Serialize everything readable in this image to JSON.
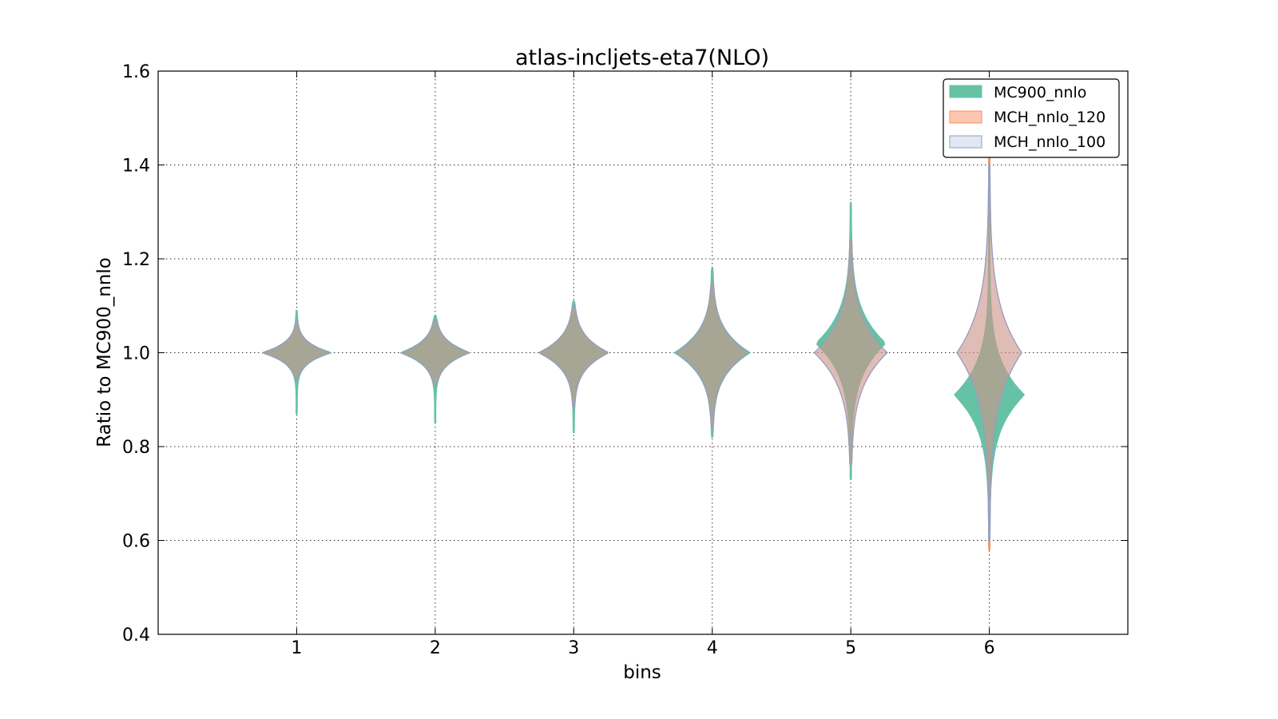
{
  "chart_data": {
    "type": "violin",
    "title": "atlas-incljets-eta7(NLO)",
    "xlabel": "bins",
    "ylabel": "Ratio to MC900_nnlo",
    "xlim": [
      0,
      7
    ],
    "ylim": [
      0.4,
      1.6
    ],
    "x_ticks": [
      "1",
      "2",
      "3",
      "4",
      "5",
      "6"
    ],
    "y_ticks": [
      "0.4",
      "0.6",
      "0.8",
      "1.0",
      "1.2",
      "1.4",
      "1.6"
    ],
    "grid": true,
    "legend_position": "top-right",
    "series": [
      {
        "name": "MC900_nnlo",
        "fill": "#66c2a5",
        "stroke": "#66c2a5",
        "fill_opacity": 1.0,
        "violins": [
          {
            "bin": 1,
            "min": 0.87,
            "max": 1.09,
            "center": 1.0,
            "half_width": 0.25,
            "spread": 0.025
          },
          {
            "bin": 2,
            "min": 0.85,
            "max": 1.08,
            "center": 1.0,
            "half_width": 0.25,
            "spread": 0.03
          },
          {
            "bin": 3,
            "min": 0.83,
            "max": 1.11,
            "center": 1.0,
            "half_width": 0.25,
            "spread": 0.04
          },
          {
            "bin": 4,
            "min": 0.82,
            "max": 1.18,
            "center": 1.0,
            "half_width": 0.27,
            "spread": 0.055
          },
          {
            "bin": 5,
            "min": 0.73,
            "max": 1.32,
            "center": 1.02,
            "half_width": 0.25,
            "spread": 0.075
          },
          {
            "bin": 6,
            "min": 0.59,
            "max": 1.54,
            "center": 0.91,
            "half_width": 0.25,
            "spread": 0.08
          }
        ]
      },
      {
        "name": "MCH_nnlo_120",
        "fill": "#fc8d62",
        "stroke": "#fc8d62",
        "fill_opacity": 0.5,
        "violins": [
          {
            "bin": 1,
            "min": 0.94,
            "max": 1.07,
            "center": 1.0,
            "half_width": 0.24,
            "spread": 0.025
          },
          {
            "bin": 2,
            "min": 0.93,
            "max": 1.07,
            "center": 1.0,
            "half_width": 0.24,
            "spread": 0.03
          },
          {
            "bin": 3,
            "min": 0.88,
            "max": 1.1,
            "center": 1.0,
            "half_width": 0.25,
            "spread": 0.04
          },
          {
            "bin": 4,
            "min": 0.84,
            "max": 1.15,
            "center": 1.0,
            "half_width": 0.26,
            "spread": 0.055
          },
          {
            "bin": 5,
            "min": 0.76,
            "max": 1.24,
            "center": 1.0,
            "half_width": 0.26,
            "spread": 0.08
          },
          {
            "bin": 6,
            "min": 0.58,
            "max": 1.42,
            "center": 1.0,
            "half_width": 0.23,
            "spread": 0.11
          }
        ]
      },
      {
        "name": "MCH_nnlo_100",
        "fill": "#8da0cb",
        "stroke": "#8da0cb",
        "fill_opacity": 0.25,
        "violins": [
          {
            "bin": 1,
            "min": 0.94,
            "max": 1.07,
            "center": 1.0,
            "half_width": 0.24,
            "spread": 0.025
          },
          {
            "bin": 2,
            "min": 0.93,
            "max": 1.07,
            "center": 1.0,
            "half_width": 0.24,
            "spread": 0.03
          },
          {
            "bin": 3,
            "min": 0.88,
            "max": 1.1,
            "center": 1.0,
            "half_width": 0.25,
            "spread": 0.04
          },
          {
            "bin": 4,
            "min": 0.84,
            "max": 1.15,
            "center": 1.0,
            "half_width": 0.26,
            "spread": 0.055
          },
          {
            "bin": 5,
            "min": 0.76,
            "max": 1.24,
            "center": 1.0,
            "half_width": 0.26,
            "spread": 0.08
          },
          {
            "bin": 6,
            "min": 0.6,
            "max": 1.4,
            "center": 1.0,
            "half_width": 0.23,
            "spread": 0.11
          }
        ]
      }
    ]
  }
}
